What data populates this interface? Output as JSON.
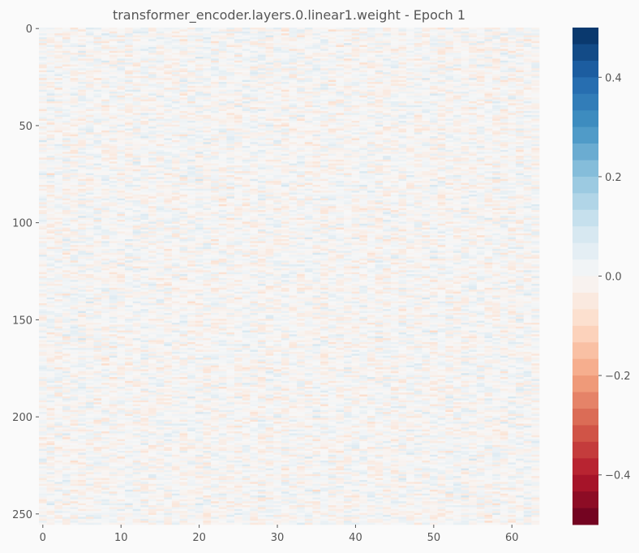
{
  "chart_data": {
    "type": "heatmap",
    "title": "transformer_encoder.layers.0.linear1.weight - Epoch 1",
    "xlabel": "",
    "ylabel": "",
    "rows": 256,
    "cols": 64,
    "xlim": [
      0,
      64
    ],
    "ylim": [
      256,
      0
    ],
    "x_ticks": [
      0,
      10,
      20,
      30,
      40,
      50,
      60
    ],
    "y_ticks": [
      0,
      50,
      100,
      150,
      200,
      250
    ],
    "colorscale": "RdBu",
    "value_range": [
      -0.5,
      0.5
    ],
    "colorbar_ticks": [
      0.4,
      0.2,
      0.0,
      -0.2,
      -0.4
    ],
    "colorbar_tick_labels": [
      "0.4",
      "0.2",
      "0.0",
      "−0.2",
      "−0.4"
    ],
    "colorbar_steps": 30,
    "value_distribution": {
      "approx_min": -0.1,
      "approx_max": 0.1
    },
    "grid": false
  }
}
